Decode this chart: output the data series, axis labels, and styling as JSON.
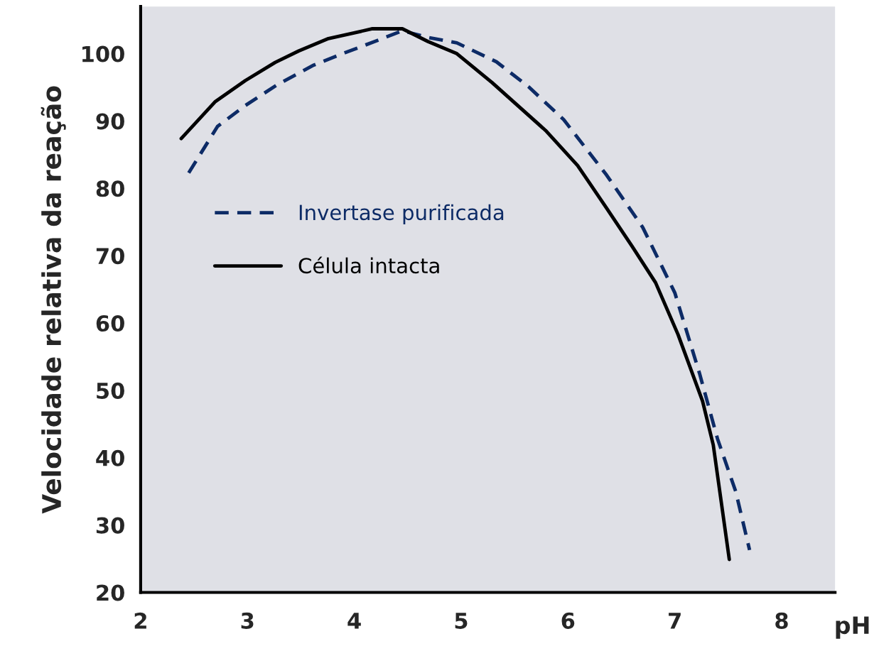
{
  "chart_data": {
    "type": "line",
    "xlabel": "pH",
    "ylabel": "Velocidade relativa da reação",
    "xlim": [
      2,
      8.5
    ],
    "xticks": [
      2,
      3,
      4,
      5,
      6,
      7,
      8
    ],
    "ylim": [
      20,
      107
    ],
    "yticks": [
      20,
      30,
      40,
      50,
      60,
      70,
      80,
      90,
      100
    ],
    "grid": false,
    "legend": "left",
    "series": [
      {
        "name": "Invertase purificada",
        "color": "#0d2b66",
        "line_style": "dashed",
        "x": [
          2.45,
          2.72,
          2.98,
          3.28,
          3.62,
          3.89,
          4.19,
          4.45,
          4.69,
          4.96,
          5.33,
          5.63,
          5.96,
          6.36,
          6.7,
          7.0,
          7.23,
          7.4,
          7.57,
          7.7
        ],
        "values": [
          82.3,
          89.2,
          92.3,
          95.4,
          98.3,
          100,
          101.8,
          103.4,
          102.4,
          101.6,
          98.8,
          95.1,
          90.2,
          82,
          74.2,
          64.5,
          52.6,
          42.8,
          35,
          26.3
        ]
      },
      {
        "name": "Célula intacta",
        "color": "#000000",
        "line_style": "solid",
        "x": [
          2.38,
          2.7,
          2.98,
          3.26,
          3.48,
          3.75,
          4.17,
          4.45,
          4.69,
          4.96,
          5.29,
          5.79,
          6.09,
          6.36,
          6.6,
          6.82,
          7.03,
          7.26,
          7.36,
          7.51
        ],
        "values": [
          87.4,
          92.9,
          96,
          98.7,
          100.4,
          102.2,
          103.7,
          103.7,
          101.8,
          100,
          95.7,
          88.6,
          83.4,
          77.1,
          71.4,
          66,
          58.3,
          48.4,
          41.9,
          24.9
        ]
      }
    ]
  }
}
